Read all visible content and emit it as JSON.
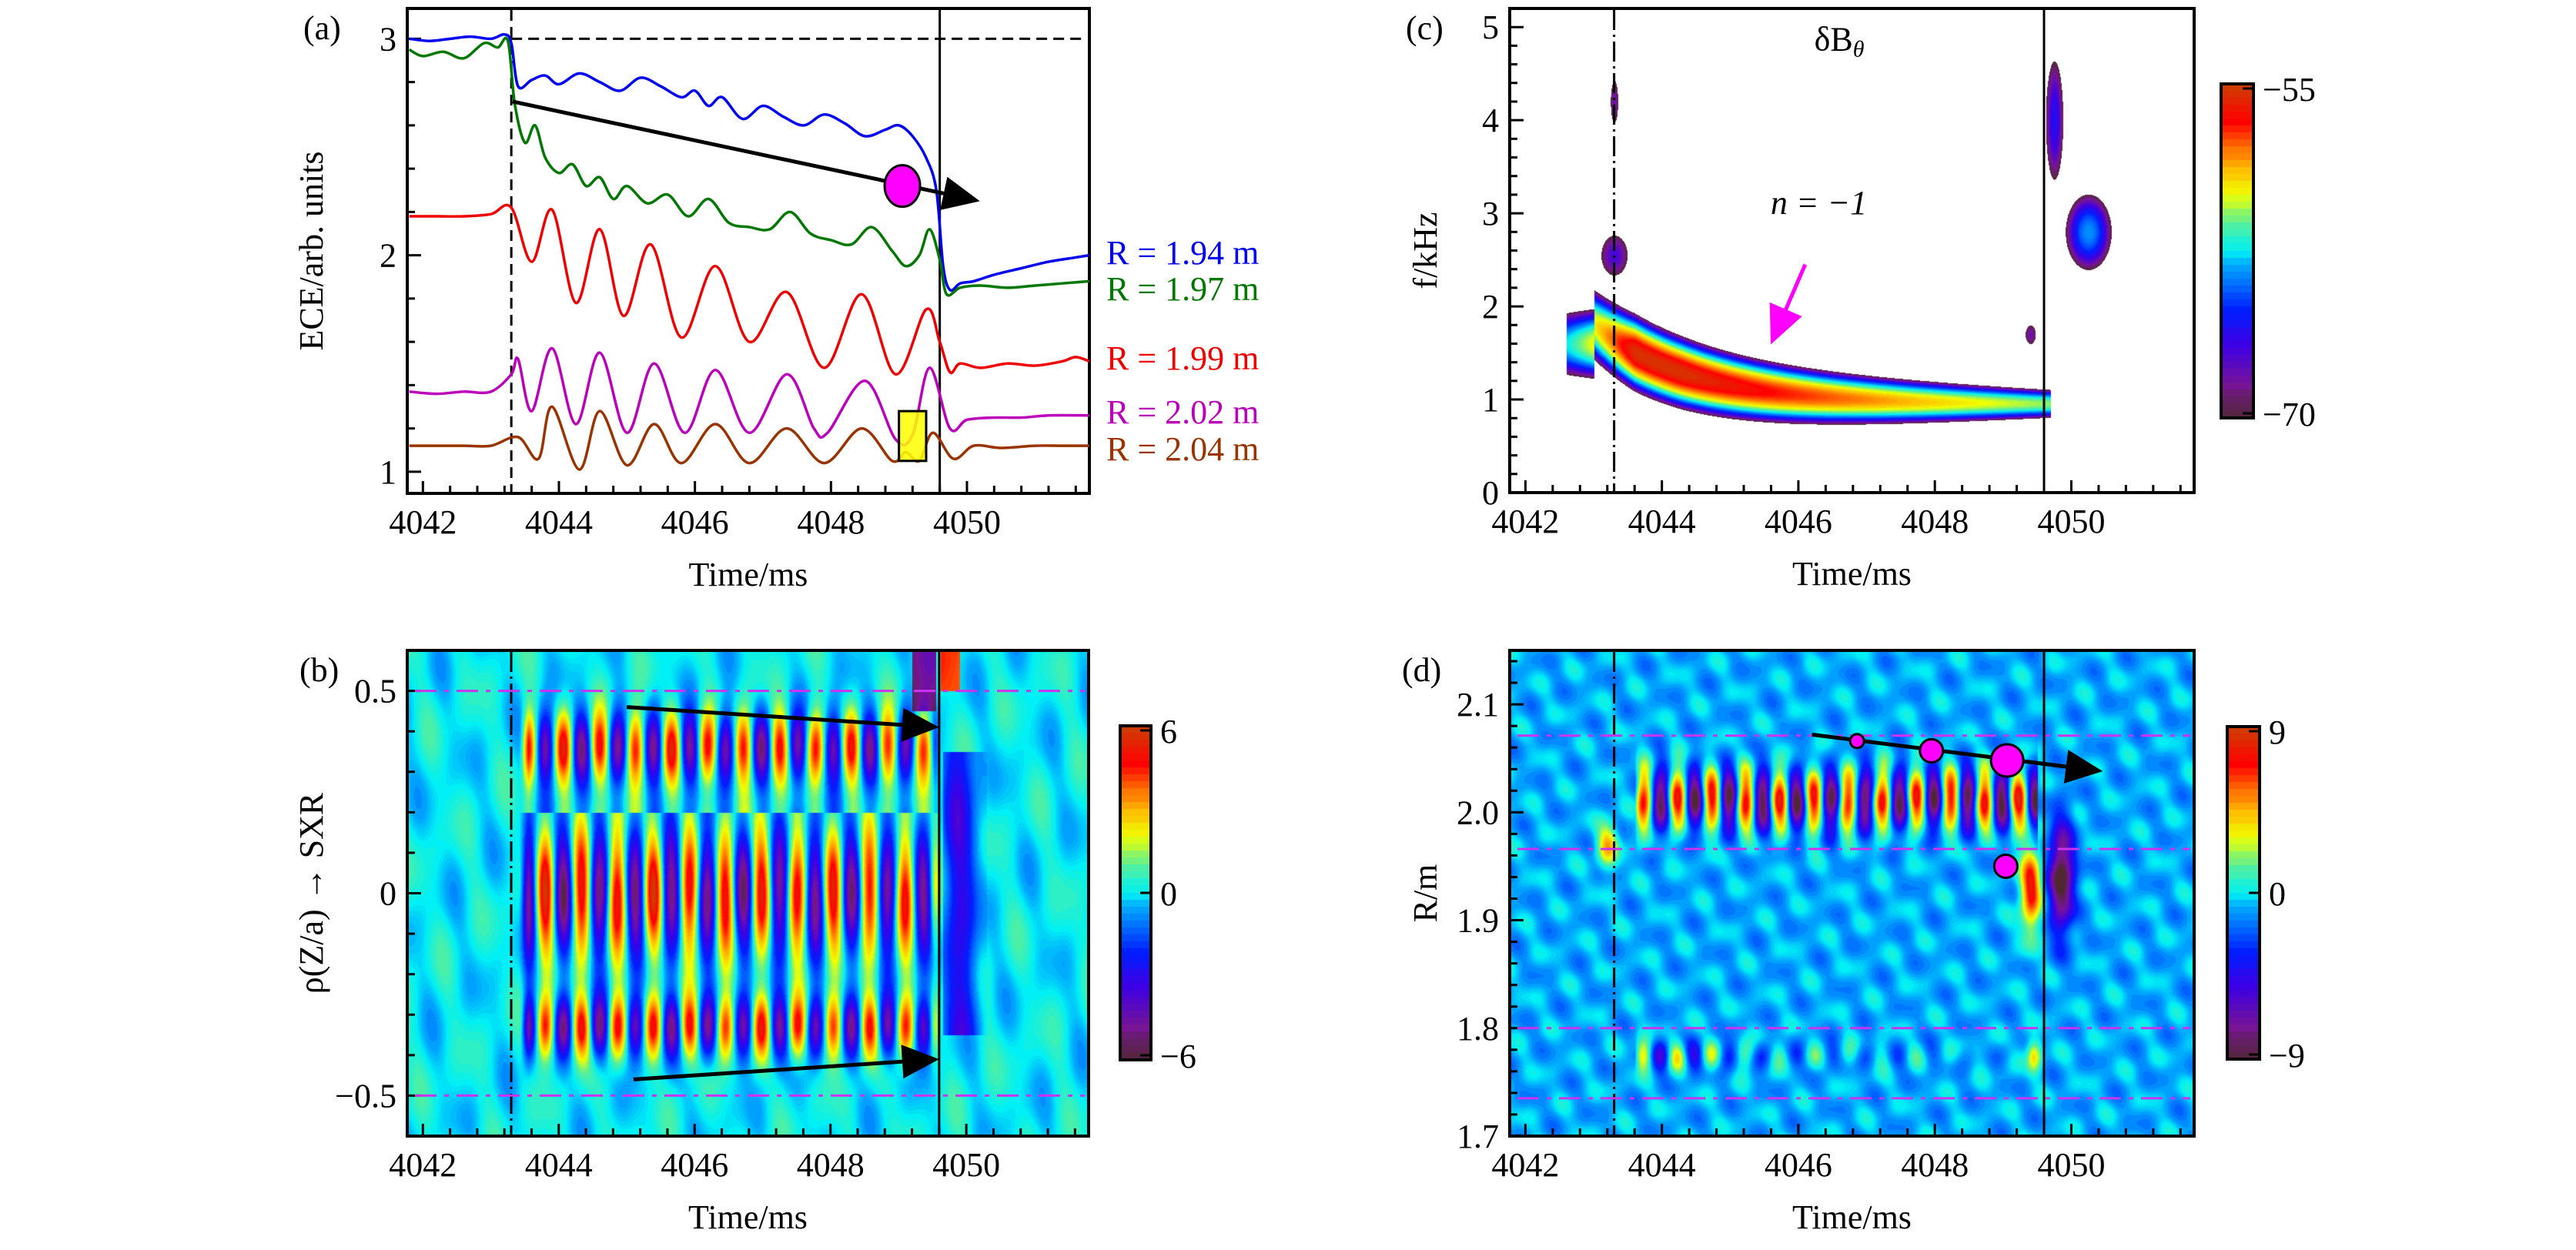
{
  "chart_data": [
    {
      "id": "a",
      "type": "line",
      "panel_label": "(a)",
      "xlabel": "Time/ms",
      "ylabel": "ECE/arb. units",
      "xlim": [
        4041.77,
        4051.8
      ],
      "ylim": [
        0.9,
        3.14
      ],
      "xticks": [
        4042,
        4044,
        4046,
        4048,
        4050
      ],
      "yticks": [
        1,
        2,
        3
      ],
      "vlines": [
        {
          "x": 4043.3,
          "style": "dashed"
        },
        {
          "x": 4049.6,
          "style": "solid"
        }
      ],
      "hlines": [
        {
          "y": 3.0,
          "style": "dashed",
          "from": 4043.3
        }
      ],
      "series": [
        {
          "name": "R = 1.94 m",
          "color": "#0000ee",
          "points": [
            [
              4041.8,
              3.0
            ],
            [
              4042.1,
              2.99
            ],
            [
              4042.4,
              3.0
            ],
            [
              4042.7,
              3.01
            ],
            [
              4043.0,
              3.0
            ],
            [
              4043.2,
              3.02
            ],
            [
              4043.3,
              2.98
            ],
            [
              4043.4,
              2.78
            ],
            [
              4043.6,
              2.81
            ],
            [
              4043.8,
              2.83
            ],
            [
              4044.0,
              2.79
            ],
            [
              4044.3,
              2.84
            ],
            [
              4044.6,
              2.8
            ],
            [
              4044.9,
              2.76
            ],
            [
              4045.2,
              2.82
            ],
            [
              4045.5,
              2.78
            ],
            [
              4045.8,
              2.73
            ],
            [
              4046.0,
              2.76
            ],
            [
              4046.2,
              2.69
            ],
            [
              4046.4,
              2.73
            ],
            [
              4046.7,
              2.63
            ],
            [
              4047.0,
              2.69
            ],
            [
              4047.3,
              2.64
            ],
            [
              4047.6,
              2.6
            ],
            [
              4047.9,
              2.65
            ],
            [
              4048.2,
              2.61
            ],
            [
              4048.5,
              2.55
            ],
            [
              4048.8,
              2.58
            ],
            [
              4049.0,
              2.6
            ],
            [
              4049.2,
              2.55
            ],
            [
              4049.4,
              2.45
            ],
            [
              4049.55,
              2.3
            ],
            [
              4049.65,
              1.95
            ],
            [
              4049.75,
              1.84
            ],
            [
              4049.9,
              1.87
            ],
            [
              4050.1,
              1.88
            ],
            [
              4050.4,
              1.91
            ],
            [
              4050.8,
              1.94
            ],
            [
              4051.2,
              1.97
            ],
            [
              4051.6,
              1.99
            ],
            [
              4051.8,
              2.0
            ]
          ]
        },
        {
          "name": "R = 1.97 m",
          "color": "#007700",
          "points": [
            [
              4041.8,
              2.95
            ],
            [
              4042.0,
              2.92
            ],
            [
              4042.3,
              2.94
            ],
            [
              4042.6,
              2.91
            ],
            [
              4042.9,
              2.98
            ],
            [
              4043.1,
              2.96
            ],
            [
              4043.25,
              2.99
            ],
            [
              4043.35,
              2.7
            ],
            [
              4043.5,
              2.52
            ],
            [
              4043.65,
              2.6
            ],
            [
              4043.8,
              2.45
            ],
            [
              4044.0,
              2.38
            ],
            [
              4044.2,
              2.42
            ],
            [
              4044.4,
              2.32
            ],
            [
              4044.6,
              2.36
            ],
            [
              4044.8,
              2.26
            ],
            [
              4045.0,
              2.32
            ],
            [
              4045.3,
              2.24
            ],
            [
              4045.6,
              2.28
            ],
            [
              4045.9,
              2.18
            ],
            [
              4046.2,
              2.26
            ],
            [
              4046.5,
              2.15
            ],
            [
              4046.8,
              2.13
            ],
            [
              4047.1,
              2.12
            ],
            [
              4047.4,
              2.2
            ],
            [
              4047.7,
              2.1
            ],
            [
              4048.0,
              2.07
            ],
            [
              4048.3,
              2.05
            ],
            [
              4048.6,
              2.13
            ],
            [
              4048.9,
              2.02
            ],
            [
              4049.1,
              1.95
            ],
            [
              4049.3,
              2.0
            ],
            [
              4049.45,
              2.12
            ],
            [
              4049.6,
              1.98
            ],
            [
              4049.7,
              1.82
            ],
            [
              4049.9,
              1.85
            ],
            [
              4050.2,
              1.86
            ],
            [
              4050.6,
              1.85
            ],
            [
              4051.0,
              1.86
            ],
            [
              4051.4,
              1.87
            ],
            [
              4051.8,
              1.88
            ]
          ]
        },
        {
          "name": "R = 1.99 m",
          "color": "#ee0000",
          "points": [
            [
              4041.8,
              2.18
            ],
            [
              4042.2,
              2.18
            ],
            [
              4042.6,
              2.18
            ],
            [
              4043.0,
              2.19
            ],
            [
              4043.3,
              2.22
            ],
            [
              4043.6,
              1.97
            ],
            [
              4043.9,
              2.21
            ],
            [
              4044.25,
              1.78
            ],
            [
              4044.6,
              2.12
            ],
            [
              4044.95,
              1.72
            ],
            [
              4045.35,
              2.05
            ],
            [
              4045.8,
              1.62
            ],
            [
              4046.3,
              1.95
            ],
            [
              4046.8,
              1.6
            ],
            [
              4047.35,
              1.83
            ],
            [
              4047.9,
              1.48
            ],
            [
              4048.45,
              1.82
            ],
            [
              4048.95,
              1.45
            ],
            [
              4049.4,
              1.75
            ],
            [
              4049.6,
              1.6
            ],
            [
              4049.75,
              1.46
            ],
            [
              4049.9,
              1.5
            ],
            [
              4050.2,
              1.48
            ],
            [
              4050.6,
              1.5
            ],
            [
              4051.0,
              1.49
            ],
            [
              4051.4,
              1.51
            ],
            [
              4051.6,
              1.53
            ],
            [
              4051.8,
              1.51
            ]
          ]
        },
        {
          "name": "R = 2.02 m",
          "color": "#bb00bb",
          "points": [
            [
              4041.8,
              1.37
            ],
            [
              4042.2,
              1.36
            ],
            [
              4042.6,
              1.37
            ],
            [
              4043.0,
              1.37
            ],
            [
              4043.3,
              1.45
            ],
            [
              4043.4,
              1.52
            ],
            [
              4043.6,
              1.28
            ],
            [
              4043.9,
              1.57
            ],
            [
              4044.25,
              1.22
            ],
            [
              4044.6,
              1.55
            ],
            [
              4045.0,
              1.18
            ],
            [
              4045.4,
              1.5
            ],
            [
              4045.85,
              1.18
            ],
            [
              4046.3,
              1.47
            ],
            [
              4046.8,
              1.18
            ],
            [
              4047.35,
              1.45
            ],
            [
              4047.75,
              1.2
            ],
            [
              4047.95,
              1.18
            ],
            [
              4048.5,
              1.42
            ],
            [
              4048.95,
              1.15
            ],
            [
              4049.2,
              1.17
            ],
            [
              4049.45,
              1.48
            ],
            [
              4049.75,
              1.2
            ],
            [
              4050.0,
              1.24
            ],
            [
              4050.4,
              1.25
            ],
            [
              4050.8,
              1.25
            ],
            [
              4051.2,
              1.26
            ],
            [
              4051.8,
              1.26
            ]
          ]
        },
        {
          "name": "R = 2.04 m",
          "color": "#993300",
          "points": [
            [
              4041.8,
              1.12
            ],
            [
              4042.2,
              1.12
            ],
            [
              4042.6,
              1.12
            ],
            [
              4043.0,
              1.12
            ],
            [
              4043.4,
              1.16
            ],
            [
              4043.7,
              1.06
            ],
            [
              4043.9,
              1.3
            ],
            [
              4044.3,
              1.01
            ],
            [
              4044.6,
              1.28
            ],
            [
              4045.0,
              1.03
            ],
            [
              4045.4,
              1.22
            ],
            [
              4045.8,
              1.04
            ],
            [
              4046.3,
              1.22
            ],
            [
              4046.8,
              1.04
            ],
            [
              4047.35,
              1.2
            ],
            [
              4047.9,
              1.04
            ],
            [
              4048.45,
              1.2
            ],
            [
              4048.9,
              1.05
            ],
            [
              4049.1,
              1.09
            ],
            [
              4049.3,
              1.05
            ],
            [
              4049.5,
              1.18
            ],
            [
              4049.8,
              1.06
            ],
            [
              4050.1,
              1.12
            ],
            [
              4050.5,
              1.11
            ],
            [
              4051.0,
              1.12
            ],
            [
              4051.4,
              1.12
            ],
            [
              4051.8,
              1.12
            ]
          ]
        }
      ],
      "annotations": {
        "arrow": {
          "from": [
            4043.32,
            2.71
          ],
          "to": [
            4050.19,
            2.25
          ],
          "color": "#000000"
        },
        "ellipse": {
          "center": [
            4049.05,
            2.32
          ],
          "color": "#ff00ff"
        },
        "box": {
          "t": [
            4049.0,
            4049.4
          ],
          "y": [
            1.05,
            1.28
          ],
          "color": "#ffff00"
        }
      }
    },
    {
      "id": "b",
      "type": "heatmap",
      "panel_label": "(b)",
      "xlabel": "Time/ms",
      "ylabel": "ρ(Z/a) → SXR",
      "xlim": [
        4041.77,
        4051.8
      ],
      "ylim": [
        -0.6,
        0.6
      ],
      "xticks": [
        4042,
        4044,
        4046,
        4048,
        4050
      ],
      "yticks": [
        -0.5,
        0,
        0.5
      ],
      "ytick_labels": [
        "−0.5",
        "0",
        "0.5"
      ],
      "vlines": [
        {
          "x": 4043.3,
          "style": "dashdot"
        },
        {
          "x": 4049.6,
          "style": "solid"
        }
      ],
      "hlines": [
        {
          "y": 0.5,
          "style": "dashdot",
          "color": "#cc33ee"
        },
        {
          "y": -0.5,
          "style": "dashdot",
          "color": "#cc33ee"
        }
      ],
      "colorbar": {
        "min": -6,
        "max": 6,
        "ticks": [
          "6",
          "0",
          "−6"
        ]
      },
      "oscillation": {
        "t_start": 4043.4,
        "t_end": 4049.6,
        "period_ms": 0.53,
        "rows": [
          0.36,
          0.0,
          -0.33
        ],
        "amplitude": 5.5
      },
      "arrows": [
        {
          "from": [
            4045.0,
            0.46
          ],
          "to": [
            4049.6,
            0.41
          ]
        },
        {
          "from": [
            4045.1,
            -0.46
          ],
          "to": [
            4049.6,
            -0.41
          ]
        }
      ]
    },
    {
      "id": "c",
      "type": "heatmap",
      "panel_label": "(c)",
      "title": "δB_θ",
      "xlabel": "Time/ms",
      "ylabel": "f/kHz",
      "xlim": [
        4041.77,
        4051.8
      ],
      "ylim": [
        0,
        5.2
      ],
      "xticks": [
        4042,
        4044,
        4046,
        4048,
        4050
      ],
      "yticks": [
        0,
        1,
        2,
        3,
        4,
        5
      ],
      "vlines": [
        {
          "x": 4043.3,
          "style": "dashdot"
        },
        {
          "x": 4049.6,
          "style": "solid"
        }
      ],
      "colorbar": {
        "min": -70,
        "max": -55,
        "ticks": [
          "−55",
          "−70"
        ]
      },
      "annotation": {
        "text": "n = −1",
        "arrow_to": [
          4045.6,
          1.6
        ],
        "color": "#ff00ff"
      },
      "features": [
        {
          "t": 4044.2,
          "f": 1.5,
          "peak": -55.5
        },
        {
          "t": 4046.5,
          "f": 1.0,
          "peak": -58
        },
        {
          "t": 4048.5,
          "f": 0.95,
          "peak": -62
        },
        {
          "t": 4043.3,
          "f": 2.5,
          "peak": -67
        },
        {
          "t": 4043.3,
          "f": 4.2,
          "peak": -68
        },
        {
          "t": 4050.2,
          "f": 2.8,
          "peak": -64
        },
        {
          "t": 4049.7,
          "f": 4.2,
          "peak": -66
        }
      ]
    },
    {
      "id": "d",
      "type": "heatmap",
      "panel_label": "(d)",
      "xlabel": "Time/ms",
      "ylabel": "R/m",
      "xlim": [
        4041.77,
        4051.8
      ],
      "ylim": [
        1.7,
        2.15
      ],
      "xticks": [
        4042,
        4044,
        4046,
        4048,
        4050
      ],
      "yticks": [
        1.7,
        1.8,
        1.9,
        2.0,
        2.1
      ],
      "ytick_labels": [
        "1.7",
        "1.8",
        "1.9",
        "2.0",
        "2.1"
      ],
      "vlines": [
        {
          "x": 4043.3,
          "style": "dashdot"
        },
        {
          "x": 4049.6,
          "style": "solid"
        }
      ],
      "hlines": [
        {
          "y": 2.071,
          "style": "dashdot",
          "color": "#cc33ee"
        },
        {
          "y": 1.966,
          "style": "dashdot",
          "color": "#cc33ee"
        },
        {
          "y": 1.8,
          "style": "dashdot",
          "color": "#cc33ee"
        },
        {
          "y": 1.735,
          "style": "dashdot",
          "color": "#cc33ee"
        }
      ],
      "colorbar": {
        "min": -9,
        "max": 9,
        "ticks": [
          "9",
          "0",
          "−9"
        ]
      },
      "oscillation": {
        "t_start": 4043.6,
        "t_end": 4049.5,
        "period_ms": 0.5,
        "rows": [
          2.01,
          1.775
        ],
        "amplitude": 8
      },
      "circles": [
        {
          "t": 4046.86,
          "R": 2.066,
          "size": "small"
        },
        {
          "t": 4047.95,
          "R": 2.057,
          "size": "medium"
        },
        {
          "t": 4049.06,
          "R": 2.048,
          "size": "large"
        },
        {
          "t": 4049.04,
          "R": 1.95,
          "size": "medium"
        }
      ],
      "arrow": {
        "from": [
          4046.2,
          2.072
        ],
        "to": [
          4050.46,
          2.038
        ]
      }
    }
  ],
  "legend_a": [
    {
      "label": "R = 1.94 m",
      "color": "#0000ee"
    },
    {
      "label": "R = 1.97 m",
      "color": "#007700"
    },
    {
      "label": "R = 1.99 m",
      "color": "#ee0000"
    },
    {
      "label": "R = 2.02 m",
      "color": "#bb00bb"
    },
    {
      "label": "R = 2.04 m",
      "color": "#993300"
    }
  ]
}
